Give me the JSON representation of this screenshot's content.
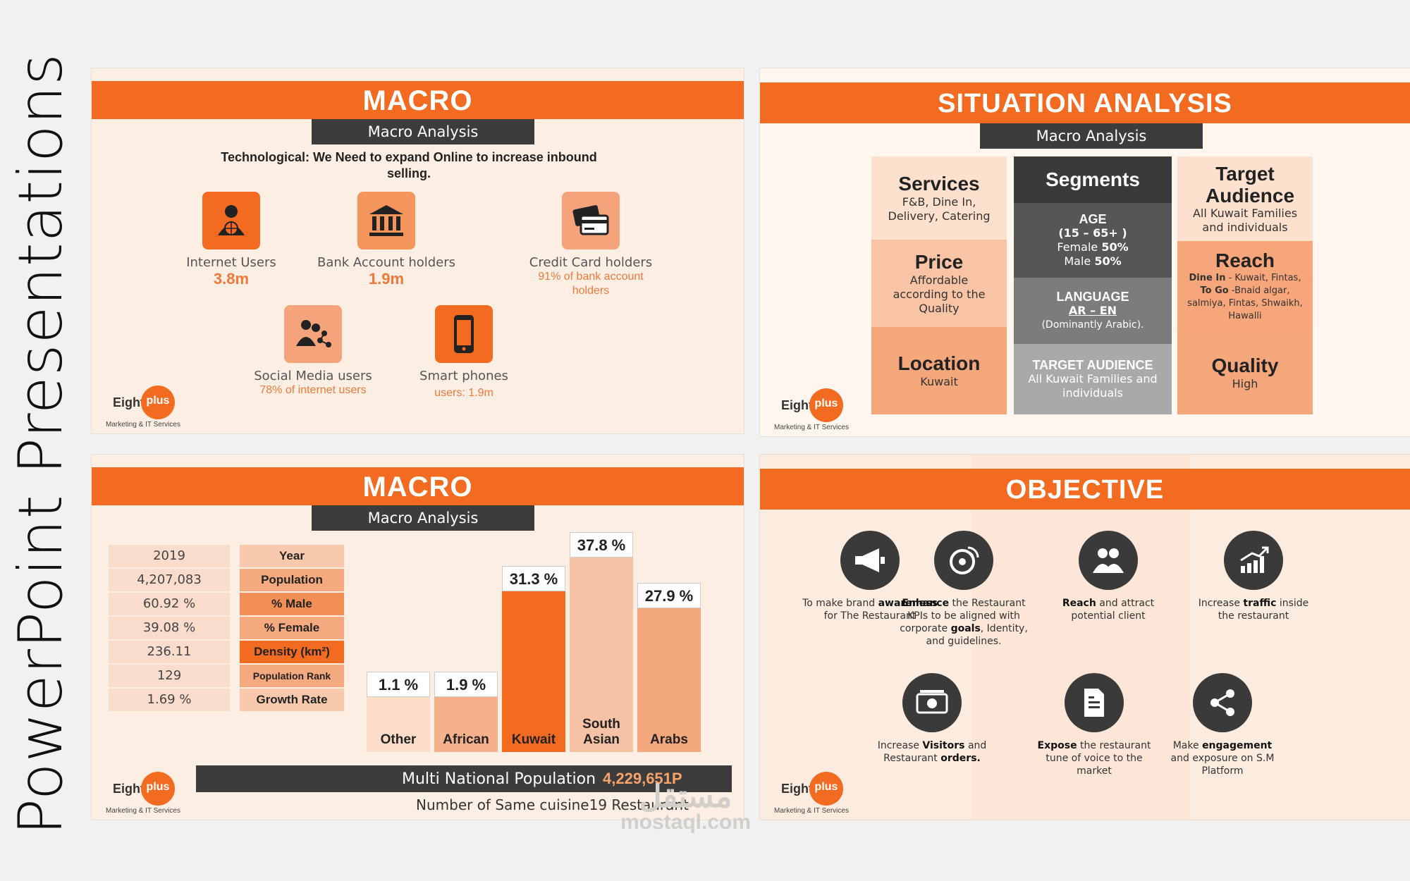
{
  "side_title": "PowerPoint Presentations",
  "logo": {
    "eight": "Eight",
    "plus": "plus",
    "tagline": "Marketing & IT Services"
  },
  "slide1": {
    "title": "MACRO",
    "subtitle": "Macro Analysis",
    "heading": "Technological: We Need to expand Online to increase inbound selling.",
    "stats": [
      {
        "label": "Internet Users",
        "value": "3.8m",
        "icon": "person-globe-icon"
      },
      {
        "label": "Bank Account holders",
        "value": "1.9m",
        "icon": "bank-icon"
      },
      {
        "label": "Credit Card holders",
        "value": "91% of bank account holders",
        "icon": "credit-card-icon"
      },
      {
        "label": "Social Media users",
        "value": "78% of internet users",
        "icon": "social-users-icon"
      },
      {
        "label": "Smart phones",
        "value": "users: 1.9m",
        "icon": "smartphone-icon"
      }
    ]
  },
  "slide2": {
    "title": "SITUATION ANALYSIS",
    "subtitle": "Macro Analysis",
    "services": {
      "title": "Services",
      "body": "F&B, Dine In, Delivery, Catering"
    },
    "price": {
      "title": "Price",
      "body": "Affordable according to the Quality"
    },
    "location": {
      "title": "Location",
      "body": "Kuwait"
    },
    "segments": {
      "title": "Segments",
      "age_title": "AGE",
      "age_range": "(15 – 65+ )",
      "female": "Female",
      "female_pct": "50%",
      "male": "Male",
      "male_pct": "50%",
      "language_title": "LANGUAGE",
      "language": "AR – EN",
      "language_note": "(Dominantly Arabic).",
      "ta_title": "TARGET AUDIENCE",
      "ta_body": "All Kuwait Families and individuals"
    },
    "target": {
      "title": "Target Audience",
      "body": "All Kuwait Families and individuals"
    },
    "reach": {
      "title": "Reach",
      "dine_label": "Dine In",
      "dine_body": "- Kuwait, Fintas,",
      "togo_label": "To Go",
      "togo_body": "-Bnaid algar, salmiya, Fintas, Shwaikh, Hawalli"
    },
    "quality": {
      "title": "Quality",
      "body": "High"
    }
  },
  "slide3": {
    "title": "MACRO",
    "subtitle": "Macro Analysis",
    "table": [
      {
        "value": "2019",
        "key": "Year"
      },
      {
        "value": "4,207,083",
        "key": "Population"
      },
      {
        "value": "60.92  %",
        "key": "% Male"
      },
      {
        "value": "39.08  %",
        "key": "% Female"
      },
      {
        "value": "236.11",
        "key": "Density (km²)"
      },
      {
        "value": "129",
        "key": "Population Rank"
      },
      {
        "value": "1.69  %",
        "key": "Growth Rate"
      }
    ],
    "multi_label": "Multi National Population",
    "multi_value": "4,229,651P",
    "cuisine": "Number of Same cuisine19 Restaurant"
  },
  "chart_data": {
    "type": "bar",
    "categories": [
      "Other",
      "African",
      "Kuwait",
      "South Asian",
      "Arabs"
    ],
    "values": [
      1.1,
      1.9,
      31.3,
      37.8,
      27.9
    ],
    "labels": [
      "1.1 %",
      "1.9  %",
      "31.3 %",
      "37.8 %",
      "27.9 %"
    ],
    "colors": [
      "#fbdcc8",
      "#f5b08c",
      "#f26b21",
      "#f6c2a6",
      "#f3a77c"
    ],
    "ylim": [
      0,
      40
    ],
    "title": "",
    "xlabel": "",
    "ylabel": ""
  },
  "slide4": {
    "title": "OBJECTIVE",
    "objectives": [
      {
        "icon": "megaphone-icon",
        "pre": "To make brand",
        "bold": "awareness",
        "post": "for The Restaurant"
      },
      {
        "icon": "satellite-dish-icon",
        "bold": "Enhance",
        "post": "the Restaurant KPIs to be aligned with corporate",
        "bold2": "goals",
        "post2": ", Identity, and guidelines."
      },
      {
        "icon": "users-icon",
        "bold": "Reach",
        "post": "and attract potential client"
      },
      {
        "icon": "growth-chart-icon",
        "pre": "Increase",
        "bold": "traffic",
        "post": "inside the restaurant"
      },
      {
        "icon": "money-icon",
        "pre": "Increase",
        "bold": "Visitors",
        "post": "and Restaurant",
        "bold2": "orders."
      },
      {
        "icon": "document-icon",
        "bold": "Expose",
        "post": "the restaurant tune of voice to the market"
      },
      {
        "icon": "share-icon",
        "pre": "Make",
        "bold": "engagement",
        "post": "and exposure on S.M Platform"
      }
    ]
  },
  "watermark": {
    "ar": "مستقل",
    "en": "mostaql.com"
  }
}
